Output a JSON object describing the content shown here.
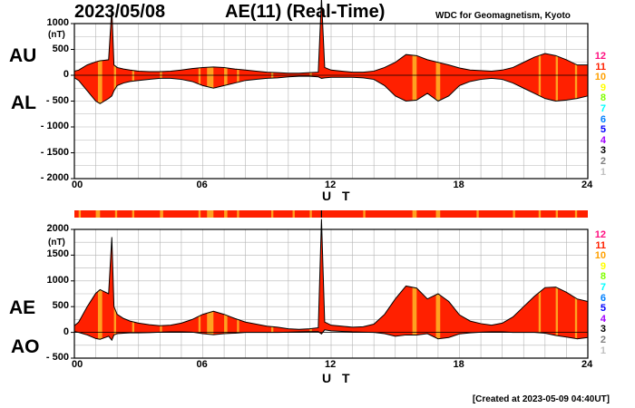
{
  "header": {
    "date": "2023/05/08",
    "title": "AE(11) (Real-Time)",
    "org": "WDC for Geomagnetism, Kyoto"
  },
  "footer": {
    "created": "[Created at 2023-05-09 04:40UT]"
  },
  "colors": {
    "fill_main": "#ff2000",
    "fill_gap": "#ffa020",
    "bar_main": "#ff2000",
    "bar_gap": "#ffa020",
    "grid": "#b4b4b4"
  },
  "legend": [
    {
      "label": "12",
      "color": "#ff1080"
    },
    {
      "label": "11",
      "color": "#ff2000"
    },
    {
      "label": "10",
      "color": "#ffa000"
    },
    {
      "label": "9",
      "color": "#ffff00"
    },
    {
      "label": "8",
      "color": "#80ff00"
    },
    {
      "label": "7",
      "color": "#00ffff"
    },
    {
      "label": "6",
      "color": "#0080ff"
    },
    {
      "label": "5",
      "color": "#0000ff"
    },
    {
      "label": "4",
      "color": "#a000ff"
    },
    {
      "label": "3",
      "color": "#000000"
    },
    {
      "label": "2",
      "color": "#808080"
    },
    {
      "label": "1",
      "color": "#c0c0c0"
    }
  ],
  "chart_data": [
    {
      "type": "area",
      "id": "au-al",
      "upper_label": "AU",
      "lower_label": "AL",
      "ylabel": "(nT)",
      "xlabel": "U T",
      "xlim": [
        0,
        24
      ],
      "ylim": [
        -2000,
        1000
      ],
      "xticks": [
        "00",
        "06",
        "12",
        "18",
        "24"
      ],
      "yticks": [
        "1000",
        "500",
        "0",
        "- 500",
        "- 1000",
        "- 1500",
        "- 2000"
      ],
      "ytick_values": [
        1000,
        500,
        0,
        -500,
        -1000,
        -1500,
        -2000
      ],
      "x": [
        0,
        0.2,
        0.4,
        0.6,
        0.8,
        1.0,
        1.2,
        1.4,
        1.6,
        1.75,
        1.85,
        2.0,
        2.3,
        2.6,
        3.0,
        3.5,
        4.0,
        4.5,
        5.0,
        5.5,
        6.0,
        6.5,
        7.0,
        7.5,
        8.0,
        8.5,
        9.0,
        9.5,
        10.0,
        10.5,
        11.0,
        11.4,
        11.55,
        11.7,
        12.0,
        12.5,
        13.0,
        13.5,
        14.0,
        14.5,
        15.0,
        15.5,
        16.0,
        16.5,
        17.0,
        17.5,
        18.0,
        18.5,
        19.0,
        19.5,
        20.0,
        20.5,
        21.0,
        21.5,
        22.0,
        22.5,
        23.0,
        23.5,
        24.0
      ],
      "series": [
        {
          "name": "AU",
          "values": [
            80,
            100,
            150,
            200,
            230,
            260,
            280,
            290,
            300,
            1300,
            200,
            150,
            120,
            100,
            80,
            70,
            70,
            80,
            100,
            130,
            150,
            160,
            150,
            120,
            100,
            80,
            60,
            50,
            40,
            40,
            50,
            60,
            1500,
            150,
            100,
            80,
            60,
            60,
            80,
            150,
            250,
            400,
            380,
            300,
            250,
            200,
            140,
            100,
            90,
            80,
            100,
            150,
            250,
            350,
            420,
            380,
            300,
            200,
            200
          ]
        },
        {
          "name": "AL",
          "values": [
            -50,
            -100,
            -200,
            -300,
            -400,
            -500,
            -550,
            -500,
            -450,
            -400,
            -300,
            -200,
            -150,
            -120,
            -100,
            -80,
            -60,
            -60,
            -80,
            -120,
            -200,
            -250,
            -200,
            -150,
            -100,
            -80,
            -60,
            -50,
            -30,
            -20,
            -20,
            -30,
            -60,
            -50,
            -40,
            -40,
            -40,
            -50,
            -80,
            -200,
            -400,
            -500,
            -480,
            -350,
            -500,
            -400,
            -200,
            -120,
            -80,
            -60,
            -80,
            -150,
            -250,
            -350,
            -450,
            -500,
            -480,
            -450,
            -400
          ]
        }
      ],
      "gap_bands": [
        [
          1.1,
          1.3
        ],
        [
          1.85,
          1.95
        ],
        [
          2.7,
          2.8
        ],
        [
          4.0,
          4.1
        ],
        [
          5.8,
          5.9
        ],
        [
          6.2,
          6.5
        ],
        [
          7.0,
          7.15
        ],
        [
          7.6,
          7.7
        ],
        [
          9.2,
          9.3
        ],
        [
          11.0,
          11.1
        ],
        [
          15.8,
          16.0
        ],
        [
          16.9,
          17.1
        ],
        [
          21.7,
          21.8
        ],
        [
          22.5,
          22.6
        ],
        [
          23.4,
          23.5
        ]
      ]
    },
    {
      "type": "area",
      "id": "ae-ao",
      "upper_label": "AE",
      "lower_label": "AO",
      "ylabel": "(nT)",
      "xlabel": "U T",
      "xlim": [
        0,
        24
      ],
      "ylim": [
        -500,
        2000
      ],
      "xticks": [
        "00",
        "06",
        "12",
        "18",
        "24"
      ],
      "yticks": [
        "2000",
        "1500",
        "1000",
        "500",
        "0",
        "- 500"
      ],
      "ytick_values": [
        2000,
        1500,
        1000,
        500,
        0,
        -500
      ],
      "x": [
        0,
        0.2,
        0.4,
        0.6,
        0.8,
        1.0,
        1.2,
        1.4,
        1.6,
        1.75,
        1.85,
        2.0,
        2.3,
        2.6,
        3.0,
        3.5,
        4.0,
        4.5,
        5.0,
        5.5,
        6.0,
        6.5,
        7.0,
        7.5,
        8.0,
        8.5,
        9.0,
        9.5,
        10.0,
        10.5,
        11.0,
        11.4,
        11.55,
        11.7,
        12.0,
        12.5,
        13.0,
        13.5,
        14.0,
        14.5,
        15.0,
        15.5,
        16.0,
        16.5,
        17.0,
        17.5,
        18.0,
        18.5,
        19.0,
        19.5,
        20.0,
        20.5,
        21.0,
        21.5,
        22.0,
        22.5,
        23.0,
        23.5,
        24.0
      ],
      "series": [
        {
          "name": "AE",
          "values": [
            130,
            200,
            350,
            500,
            630,
            760,
            830,
            790,
            750,
            1850,
            500,
            350,
            270,
            220,
            180,
            150,
            130,
            140,
            180,
            250,
            350,
            410,
            350,
            270,
            200,
            160,
            120,
            100,
            70,
            60,
            70,
            90,
            2200,
            200,
            140,
            120,
            100,
            110,
            160,
            350,
            650,
            900,
            860,
            650,
            750,
            600,
            340,
            220,
            170,
            140,
            180,
            300,
            500,
            700,
            870,
            880,
            780,
            650,
            600
          ]
        },
        {
          "name": "AO",
          "values": [
            15,
            0,
            -25,
            -50,
            -85,
            -120,
            -135,
            -105,
            -75,
            -150,
            -50,
            -25,
            -15,
            -10,
            -10,
            -5,
            5,
            10,
            10,
            5,
            -25,
            -45,
            -25,
            -15,
            0,
            0,
            0,
            0,
            5,
            10,
            15,
            15,
            -30,
            50,
            30,
            20,
            10,
            5,
            0,
            -25,
            -75,
            -50,
            -50,
            -25,
            -125,
            -100,
            -30,
            -10,
            5,
            10,
            10,
            0,
            0,
            0,
            -15,
            -60,
            -90,
            -125,
            -100
          ]
        }
      ],
      "gap_bands": [
        [
          1.1,
          1.3
        ],
        [
          1.85,
          1.95
        ],
        [
          2.7,
          2.8
        ],
        [
          4.0,
          4.1
        ],
        [
          5.8,
          5.9
        ],
        [
          6.2,
          6.5
        ],
        [
          7.0,
          7.15
        ],
        [
          7.6,
          7.7
        ],
        [
          9.2,
          9.3
        ],
        [
          11.0,
          11.1
        ],
        [
          15.8,
          16.0
        ],
        [
          16.9,
          17.1
        ],
        [
          21.7,
          21.8
        ],
        [
          22.5,
          22.6
        ],
        [
          23.4,
          23.5
        ]
      ]
    }
  ],
  "status_bar_gaps": [
    [
      0.2,
      0.3
    ],
    [
      1.0,
      1.2
    ],
    [
      1.9,
      2.0
    ],
    [
      2.7,
      2.8
    ],
    [
      4.0,
      4.15
    ],
    [
      5.8,
      5.9
    ],
    [
      6.2,
      6.5
    ],
    [
      7.0,
      7.15
    ],
    [
      7.6,
      7.7
    ],
    [
      9.2,
      9.3
    ],
    [
      10.2,
      10.3
    ],
    [
      11.0,
      11.1
    ],
    [
      13.5,
      13.6
    ],
    [
      15.8,
      16.0
    ],
    [
      16.9,
      17.1
    ],
    [
      18.8,
      18.9
    ],
    [
      20.5,
      20.6
    ],
    [
      21.7,
      21.8
    ],
    [
      22.5,
      22.6
    ],
    [
      23.4,
      23.5
    ]
  ]
}
